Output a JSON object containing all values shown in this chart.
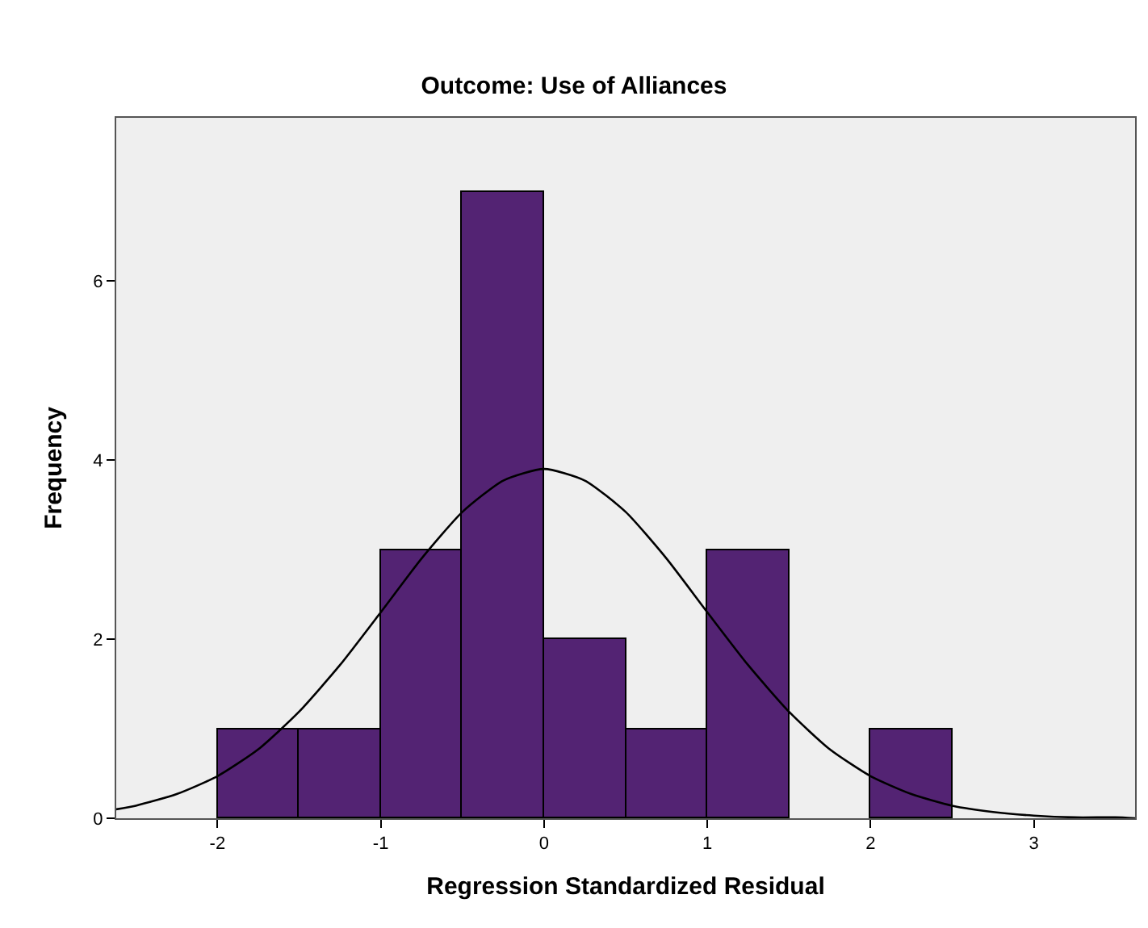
{
  "chart_data": {
    "type": "histogram",
    "title": "Outcome: Use of Alliances",
    "xlabel": "Regression Standardized Residual",
    "ylabel": "Frequency",
    "bins": [
      -2,
      -1.5,
      -1,
      -0.5,
      0,
      0.5,
      1,
      1.5,
      2,
      2.5
    ],
    "values": [
      1,
      1,
      3,
      7,
      2,
      1,
      3,
      0,
      1
    ],
    "color": "#532373",
    "series": [
      {
        "type": "line",
        "color": "#000000",
        "x": [
          -2.62,
          -2.5,
          -2.25,
          -2,
          -1.75,
          -1.5,
          -1.25,
          -1,
          -0.75,
          -0.5,
          -0.25,
          0,
          0.25,
          0.5,
          0.75,
          1,
          1.25,
          1.5,
          1.75,
          2,
          2.25,
          2.5,
          2.75,
          3,
          3.25,
          3.5,
          3.62
        ],
        "values": [
          0.1,
          0.14,
          0.27,
          0.47,
          0.77,
          1.19,
          1.71,
          2.3,
          2.9,
          3.42,
          3.77,
          3.9,
          3.77,
          3.42,
          2.9,
          2.3,
          1.71,
          1.19,
          0.77,
          0.47,
          0.27,
          0.14,
          0.07,
          0.03,
          0.01,
          0.01,
          0.0
        ]
      }
    ],
    "xlim": [
      -2.62,
      3.62
    ],
    "ylim": [
      0,
      7.82
    ],
    "xticks": [
      -2,
      -1,
      0,
      1,
      2,
      3
    ],
    "yticks": [
      0,
      2,
      4,
      6
    ],
    "grid": false,
    "marker": "none",
    "line_style": "solid"
  }
}
